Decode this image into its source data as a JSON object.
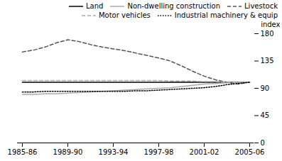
{
  "chart_data": {
    "type": "line",
    "categories": [
      "1985-86",
      null,
      null,
      null,
      "1989-90",
      null,
      null,
      null,
      "1993-94",
      null,
      null,
      null,
      "1997-98",
      null,
      null,
      null,
      "2001-02",
      null,
      null,
      null,
      "2005-06"
    ],
    "series": [
      {
        "name": "Land",
        "color": "#000000",
        "line_style": "solid",
        "values": [
          100,
          100,
          100,
          100,
          100,
          100,
          100,
          100,
          100,
          100,
          100,
          100,
          100,
          100,
          100,
          100,
          100,
          100,
          100,
          100,
          100
        ]
      },
      {
        "name": "Non-dwelling construction",
        "color": "#aaaaaa",
        "line_style": "solid",
        "values": [
          80,
          80,
          81,
          81,
          82,
          83,
          84,
          85,
          86,
          87,
          88,
          89,
          90,
          91,
          93,
          95,
          97,
          98,
          99,
          100,
          100
        ]
      },
      {
        "name": "Livestock",
        "color": "#555555",
        "line_style": "dashed",
        "values": [
          150,
          153,
          158,
          165,
          170,
          167,
          162,
          158,
          155,
          152,
          148,
          144,
          140,
          135,
          127,
          118,
          110,
          104,
          100,
          97,
          100
        ]
      },
      {
        "name": "Motor vehicles",
        "color": "#aaaaaa",
        "line_style": "dashed",
        "values": [
          103,
          103,
          103,
          103,
          103,
          103,
          103,
          103,
          103,
          103,
          103,
          103,
          103,
          102,
          102,
          102,
          101,
          101,
          100,
          100,
          100
        ]
      },
      {
        "name": "Industrial machinery & equip",
        "color": "#000000",
        "line_style": "dotted",
        "values": [
          84,
          84,
          85,
          85,
          85,
          85,
          85,
          85,
          85,
          85,
          86,
          86,
          87,
          88,
          89,
          90,
          91,
          93,
          96,
          98,
          100
        ]
      }
    ],
    "ylabel": "index",
    "ylim": [
      0,
      180
    ],
    "yticks": [
      0,
      45,
      90,
      135,
      180
    ],
    "legend": "upper right"
  }
}
